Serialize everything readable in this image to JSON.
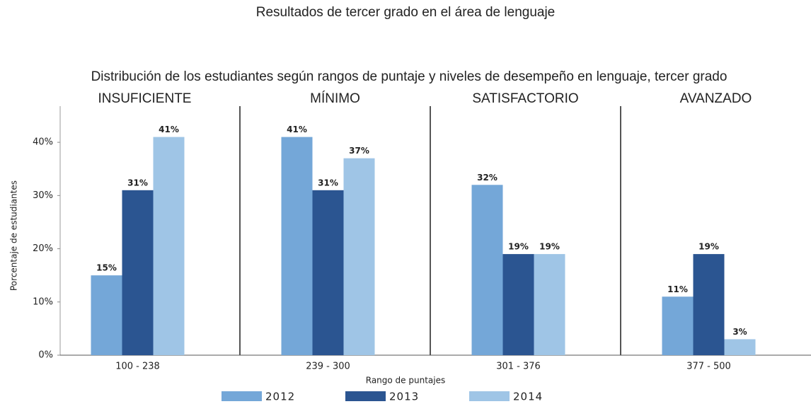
{
  "chart_data": {
    "type": "bar",
    "title": "Resultados de tercer grado en el área de lenguaje",
    "subtitle": "Distribución de los estudiantes según rangos de puntaje y niveles de desempeño en lenguaje, tercer grado",
    "group_labels": [
      "INSUFICIENTE",
      "MÍNIMO",
      "SATISFACTORIO",
      "AVANZADO"
    ],
    "x_label": "Rango de puntajes",
    "y_label": "Porcentaje de estudiantes",
    "categories": [
      "100 - 238",
      "239 - 300",
      "301 - 376",
      "377 - 500"
    ],
    "series": [
      {
        "name": "2012",
        "color": "#74a7d8",
        "values": [
          15,
          41,
          32,
          11
        ],
        "value_labels": [
          "15%",
          "41%",
          "32%",
          "11%"
        ]
      },
      {
        "name": "2013",
        "color": "#2b5591",
        "values": [
          31,
          31,
          19,
          19
        ],
        "value_labels": [
          "31%",
          "31%",
          "19%",
          "19%"
        ]
      },
      {
        "name": "2014",
        "color": "#9fc5e6",
        "values": [
          41,
          37,
          19,
          3
        ],
        "value_labels": [
          "41%",
          "37%",
          "19%",
          "3%"
        ]
      }
    ],
    "ylim": [
      0,
      46
    ],
    "yticks": [
      {
        "value": 0,
        "label": "0%"
      },
      {
        "value": 10,
        "label": "10%"
      },
      {
        "value": 20,
        "label": "20%"
      },
      {
        "value": 30,
        "label": "30%"
      },
      {
        "value": 40,
        "label": "40%"
      }
    ],
    "legend": "bottom"
  }
}
